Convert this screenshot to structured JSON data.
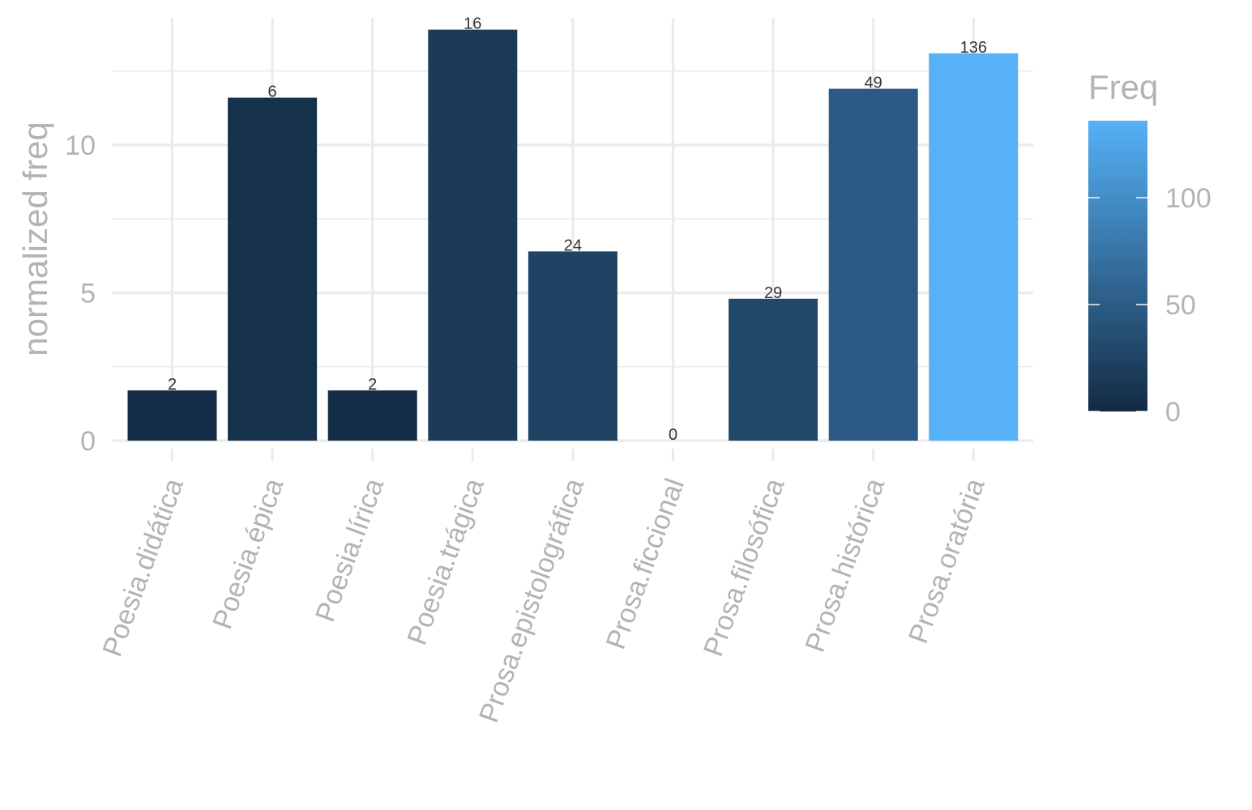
{
  "chart_data": {
    "type": "bar",
    "title": "",
    "xlabel": "",
    "ylabel": "normalized freq",
    "ylim": [
      0,
      14.3
    ],
    "yticks": [
      0,
      5,
      10
    ],
    "grid": true,
    "categories": [
      "Poesia.didática",
      "Poesia.épica",
      "Poesia.lírica",
      "Poesia.trágica",
      "Prosa.epistolográfica",
      "Prosa.ficcional",
      "Prosa.filosófica",
      "Prosa.histórica",
      "Prosa.oratória"
    ],
    "values": [
      1.7,
      11.6,
      1.7,
      13.9,
      6.4,
      0,
      4.8,
      11.9,
      13.1
    ],
    "freq": [
      2,
      6,
      2,
      16,
      24,
      0,
      29,
      49,
      136
    ],
    "data_labels": [
      "2",
      "6",
      "2",
      "16",
      "24",
      "0",
      "29",
      "49",
      "136"
    ],
    "x_tick_rotation_deg": -70,
    "legend": {
      "title": "Freq",
      "placement": "right",
      "type": "colorbar",
      "range": [
        0,
        136
      ],
      "ticks": [
        0,
        50,
        100
      ],
      "tick_labels": [
        "0",
        "50",
        "100"
      ],
      "low_color": "#132B43",
      "high_color": "#56B1F7"
    }
  }
}
